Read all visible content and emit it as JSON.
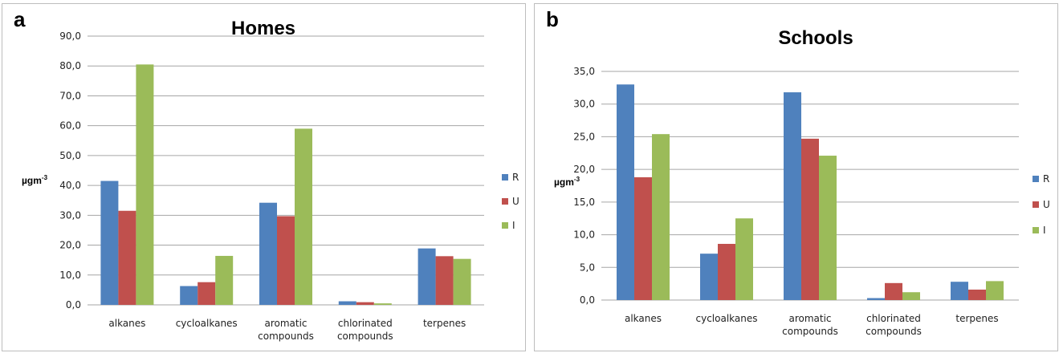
{
  "colors": {
    "R": "#4f81bd",
    "U": "#c0504d",
    "I": "#9bbb59",
    "grid": "#a6a6a6"
  },
  "panels": [
    {
      "letter": "a",
      "ylabel_base": "µgm",
      "ylabel_sup": "-3"
    },
    {
      "letter": "b",
      "ylabel_base": "µgm",
      "ylabel_sup": "-3"
    }
  ],
  "chart_data": [
    {
      "type": "bar",
      "title": "Homes",
      "ylabel": "µgm-3",
      "xlabel": "",
      "categories": [
        "alkanes",
        "cycloalkanes",
        "aromatic compounds",
        "chlorinated compounds",
        "terpenes"
      ],
      "series": [
        {
          "name": "R",
          "values": [
            41.5,
            6.3,
            34.2,
            1.2,
            18.9
          ]
        },
        {
          "name": "U",
          "values": [
            31.5,
            7.6,
            29.7,
            0.9,
            16.3
          ]
        },
        {
          "name": "I",
          "values": [
            80.5,
            16.4,
            59.0,
            0.5,
            15.4
          ]
        }
      ],
      "ylim": [
        0,
        90
      ],
      "yticks": [
        "0,0",
        "10,0",
        "20,0",
        "30,0",
        "40,0",
        "50,0",
        "60,0",
        "70,0",
        "80,0",
        "90,0"
      ],
      "grid": true,
      "legend": "right"
    },
    {
      "type": "bar",
      "title": "Schools",
      "ylabel": "µgm-3",
      "xlabel": "",
      "categories": [
        "alkanes",
        "cycloalkanes",
        "aromatic compounds",
        "chlorinated compounds",
        "terpenes"
      ],
      "series": [
        {
          "name": "R",
          "values": [
            33.0,
            7.1,
            31.8,
            0.3,
            2.8
          ]
        },
        {
          "name": "U",
          "values": [
            18.8,
            8.6,
            24.7,
            2.6,
            1.6
          ]
        },
        {
          "name": "I",
          "values": [
            25.4,
            12.5,
            22.1,
            1.2,
            2.9
          ]
        }
      ],
      "ylim": [
        0,
        35
      ],
      "yticks": [
        "0,0",
        "5,0",
        "10,0",
        "15,0",
        "20,0",
        "25,0",
        "30,0",
        "35,0"
      ],
      "grid": true,
      "legend": "right"
    }
  ]
}
